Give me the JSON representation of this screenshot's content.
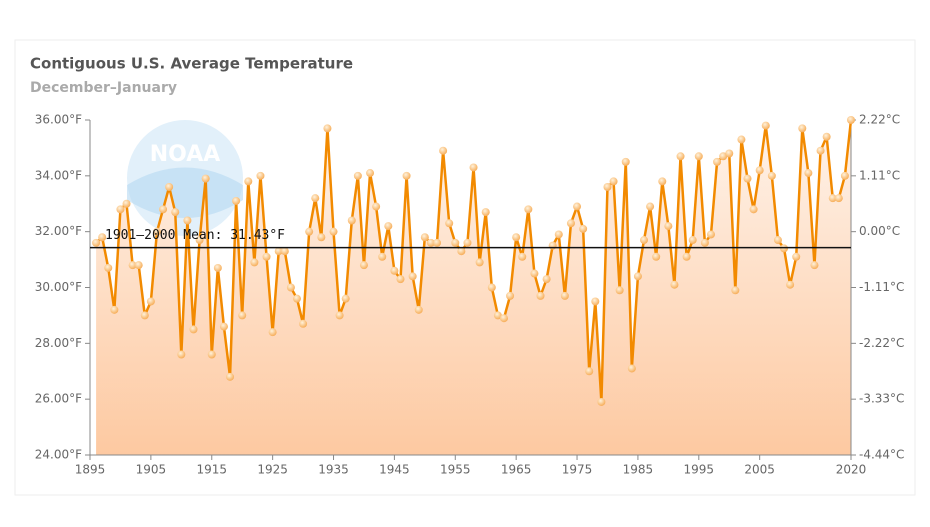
{
  "chart_data": {
    "type": "line",
    "title": "Contiguous U.S. Average Temperature",
    "subtitle": "December–January",
    "logo_text": "NOAA",
    "x": [
      1896,
      1897,
      1898,
      1899,
      1900,
      1901,
      1902,
      1903,
      1904,
      1905,
      1906,
      1907,
      1908,
      1909,
      1910,
      1911,
      1912,
      1913,
      1914,
      1915,
      1916,
      1917,
      1918,
      1919,
      1920,
      1921,
      1922,
      1923,
      1924,
      1925,
      1926,
      1927,
      1928,
      1929,
      1930,
      1931,
      1932,
      1933,
      1934,
      1935,
      1936,
      1937,
      1938,
      1939,
      1940,
      1941,
      1942,
      1943,
      1944,
      1945,
      1946,
      1947,
      1948,
      1949,
      1950,
      1951,
      1952,
      1953,
      1954,
      1955,
      1956,
      1957,
      1958,
      1959,
      1960,
      1961,
      1962,
      1963,
      1964,
      1965,
      1966,
      1967,
      1968,
      1969,
      1970,
      1971,
      1972,
      1973,
      1974,
      1975,
      1976,
      1977,
      1978,
      1979,
      1980,
      1981,
      1982,
      1983,
      1984,
      1985,
      1986,
      1987,
      1988,
      1989,
      1990,
      1991,
      1992,
      1993,
      1994,
      1995,
      1996,
      1997,
      1998,
      1999,
      2000,
      2001,
      2002,
      2003,
      2004,
      2005,
      2006,
      2007,
      2008,
      2009,
      2010,
      2011,
      2012,
      2013,
      2014,
      2015,
      2016,
      2017,
      2018,
      2019,
      2020
    ],
    "series": [
      {
        "name": "Average Temperature",
        "color": "#f28a00",
        "values": [
          31.6,
          31.8,
          30.7,
          29.2,
          32.8,
          33.0,
          30.8,
          30.8,
          29.0,
          29.5,
          32.0,
          32.8,
          33.6,
          32.7,
          27.6,
          32.4,
          28.5,
          31.7,
          33.9,
          27.6,
          30.7,
          28.6,
          26.8,
          33.1,
          29.0,
          33.8,
          30.9,
          34.0,
          31.1,
          28.4,
          31.3,
          31.3,
          30.0,
          29.6,
          28.7,
          32.0,
          33.2,
          31.8,
          35.7,
          32.0,
          29.0,
          29.6,
          32.4,
          34.0,
          30.8,
          34.1,
          32.9,
          31.1,
          32.2,
          30.6,
          30.3,
          34.0,
          30.4,
          29.2,
          31.8,
          31.6,
          31.6,
          34.9,
          32.3,
          31.6,
          31.3,
          31.6,
          34.3,
          30.9,
          32.7,
          30.0,
          29.0,
          28.9,
          29.7,
          31.8,
          31.1,
          32.8,
          30.5,
          29.7,
          30.3,
          31.5,
          31.9,
          29.7,
          32.3,
          32.9,
          32.1,
          27.0,
          29.5,
          25.9,
          33.6,
          33.8,
          29.9,
          34.5,
          27.1,
          30.4,
          31.7,
          32.9,
          31.1,
          33.8,
          32.2,
          30.1,
          34.7,
          31.1,
          31.7,
          34.7,
          31.6,
          31.9,
          34.5,
          34.7,
          34.8,
          29.9,
          35.3,
          33.9,
          32.8,
          34.2,
          35.8,
          34.0,
          31.7,
          31.4,
          30.1,
          31.1,
          35.7,
          34.1,
          30.8,
          34.9,
          35.4,
          33.2,
          33.2,
          34.0,
          36.0
        ]
      }
    ],
    "mean_line": {
      "value": 31.43,
      "label": "1901–2000 Mean: 31.43°F"
    },
    "xlim": [
      1895,
      2020
    ],
    "xticks": [
      1895,
      1905,
      1915,
      1925,
      1935,
      1945,
      1955,
      1965,
      1975,
      1985,
      1995,
      2005,
      2020
    ],
    "ylim": [
      24,
      36
    ],
    "yticks": [
      {
        "value": 24,
        "label": "24.00°F"
      },
      {
        "value": 26,
        "label": "26.00°F"
      },
      {
        "value": 28,
        "label": "28.00°F"
      },
      {
        "value": 30,
        "label": "30.00°F"
      },
      {
        "value": 32,
        "label": "32.00°F"
      },
      {
        "value": 34,
        "label": "34.00°F"
      },
      {
        "value": 36,
        "label": "36.00°F"
      }
    ],
    "y2lim": [
      -4.44,
      2.22
    ],
    "y2ticks": [
      {
        "value": -4.44,
        "label": "-4.44°C"
      },
      {
        "value": -3.33,
        "label": "-3.33°C"
      },
      {
        "value": -2.22,
        "label": "-2.22°C"
      },
      {
        "value": -1.11,
        "label": "-1.11°C"
      },
      {
        "value": 0,
        "label": "0.00°C"
      },
      {
        "value": 1.11,
        "label": "1.11°C"
      },
      {
        "value": 2.22,
        "label": "2.22°C"
      }
    ]
  }
}
